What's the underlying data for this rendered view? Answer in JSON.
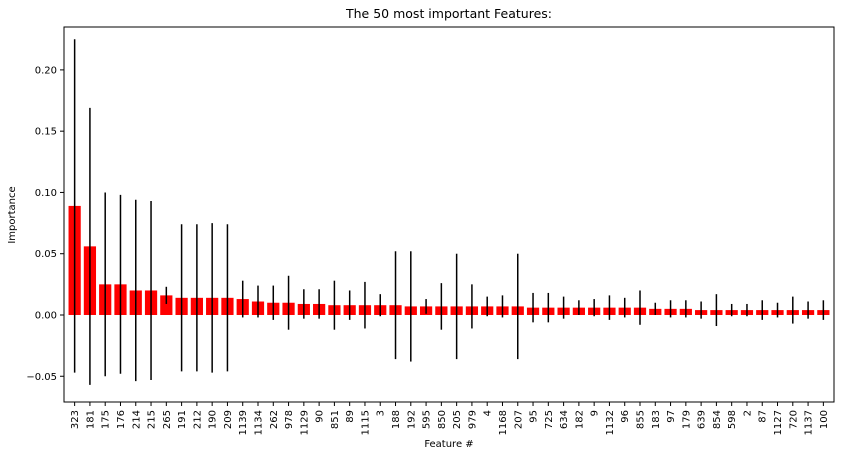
{
  "chart_data": {
    "type": "bar",
    "title": "The 50 most important Features:",
    "xlabel": "Feature #",
    "ylabel": "Importance",
    "ylim": [
      -0.071,
      0.235
    ],
    "yticks": [
      -0.05,
      0.0,
      0.05,
      0.1,
      0.15,
      0.2
    ],
    "ytick_labels": [
      "−0.05",
      "0.00",
      "0.05",
      "0.10",
      "0.15",
      "0.20"
    ],
    "grid": false,
    "bar_color": "#ff0000",
    "error_color": "#000000",
    "categories": [
      "323",
      "181",
      "175",
      "176",
      "214",
      "215",
      "265",
      "191",
      "212",
      "190",
      "209",
      "1139",
      "1134",
      "262",
      "978",
      "1129",
      "90",
      "851",
      "89",
      "1115",
      "3",
      "188",
      "192",
      "595",
      "850",
      "205",
      "979",
      "4",
      "1168",
      "207",
      "95",
      "725",
      "634",
      "182",
      "9",
      "1132",
      "96",
      "855",
      "183",
      "97",
      "179",
      "639",
      "854",
      "598",
      "2",
      "87",
      "1127",
      "720",
      "1137",
      "100"
    ],
    "values": [
      0.089,
      0.056,
      0.025,
      0.025,
      0.02,
      0.02,
      0.016,
      0.014,
      0.014,
      0.014,
      0.014,
      0.013,
      0.011,
      0.01,
      0.01,
      0.009,
      0.009,
      0.008,
      0.008,
      0.008,
      0.008,
      0.008,
      0.007,
      0.007,
      0.007,
      0.007,
      0.007,
      0.007,
      0.007,
      0.007,
      0.006,
      0.006,
      0.006,
      0.006,
      0.006,
      0.006,
      0.006,
      0.006,
      0.005,
      0.005,
      0.005,
      0.004,
      0.004,
      0.004,
      0.004,
      0.004,
      0.004,
      0.004,
      0.004,
      0.004
    ],
    "errors": [
      0.136,
      0.113,
      0.075,
      0.073,
      0.074,
      0.073,
      0.007,
      0.06,
      0.06,
      0.061,
      0.06,
      0.015,
      0.013,
      0.014,
      0.022,
      0.012,
      0.012,
      0.02,
      0.012,
      0.019,
      0.009,
      0.044,
      0.045,
      0.006,
      0.019,
      0.043,
      0.018,
      0.008,
      0.009,
      0.043,
      0.012,
      0.012,
      0.009,
      0.006,
      0.007,
      0.01,
      0.008,
      0.014,
      0.005,
      0.007,
      0.007,
      0.007,
      0.013,
      0.005,
      0.005,
      0.008,
      0.006,
      0.011,
      0.007,
      0.008
    ]
  }
}
